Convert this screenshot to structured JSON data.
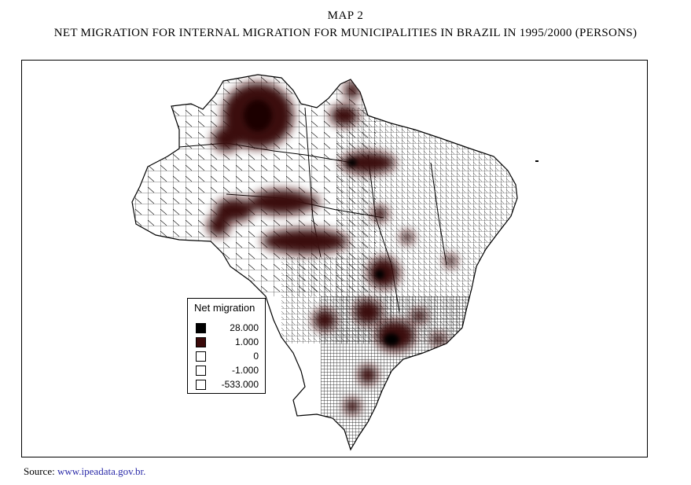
{
  "header": {
    "map_label": "MAP 2",
    "title": "NET MIGRATION FOR INTERNAL MIGRATION FOR MUNICIPALITIES IN BRAZIL IN 1995/2000 (PERSONS)"
  },
  "legend": {
    "title": "Net migration",
    "items": [
      {
        "value": "28.000",
        "color": "#000000"
      },
      {
        "value": "1.000",
        "color": "#3a0a0a"
      },
      {
        "value": "0",
        "color": "#ffffff"
      },
      {
        "value": "-1.000",
        "color": "#ffffff"
      },
      {
        "value": "-533.000",
        "color": "#ffffff"
      }
    ]
  },
  "source": {
    "prefix": "Source: ",
    "link": "www.ipeadata.gov.br."
  },
  "colors": {
    "positive_dark": "#3a0a0a",
    "positive_max": "#000000",
    "border_lines": "#000000",
    "link": "#2a2aa8"
  }
}
